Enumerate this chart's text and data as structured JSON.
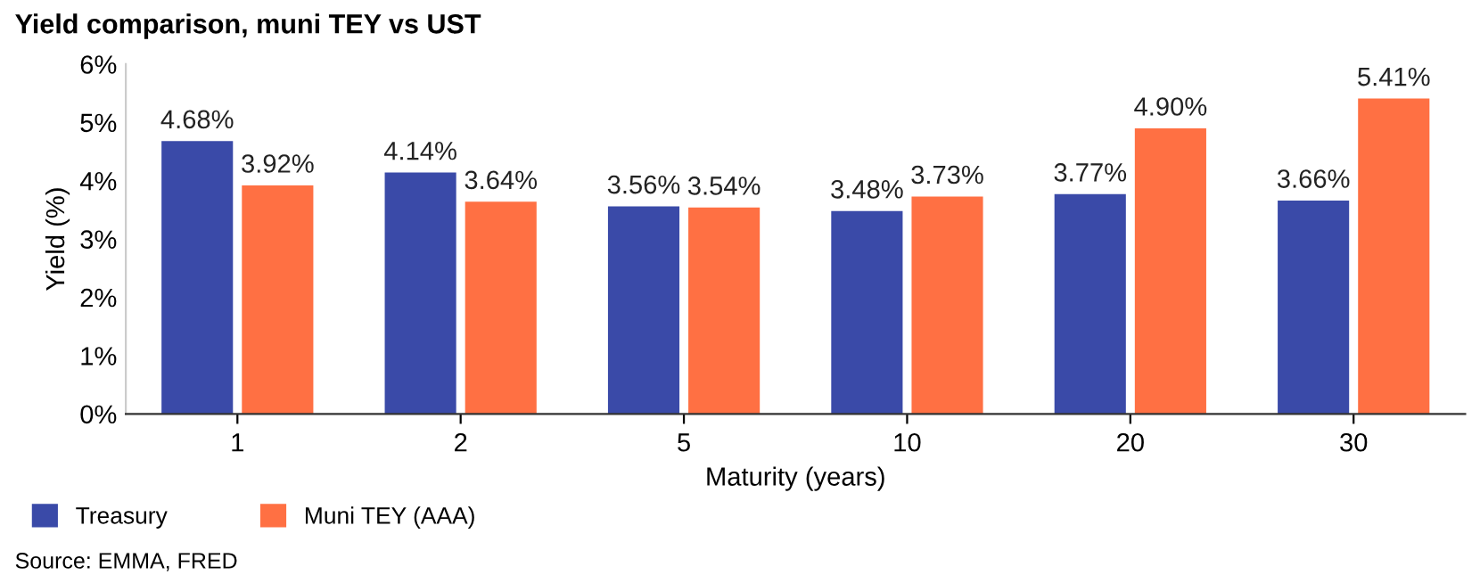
{
  "chart_data": {
    "type": "bar",
    "title": "Yield comparison, muni TEY vs UST",
    "xlabel": "Maturity (years)",
    "ylabel": "Yield (%)",
    "categories": [
      "1",
      "2",
      "5",
      "10",
      "20",
      "30"
    ],
    "series": [
      {
        "name": "Treasury",
        "color": "#3a4aa8",
        "values": [
          4.68,
          4.14,
          3.56,
          3.48,
          3.77,
          3.66
        ],
        "value_labels": [
          "4.68%",
          "4.14%",
          "3.56%",
          "3.48%",
          "3.77%",
          "3.66%"
        ]
      },
      {
        "name": "Muni TEY (AAA)",
        "color": "#ff7043",
        "values": [
          3.92,
          3.64,
          3.54,
          3.73,
          4.9,
          5.41
        ],
        "value_labels": [
          "3.92%",
          "3.64%",
          "3.54%",
          "3.73%",
          "4.90%",
          "5.41%"
        ]
      }
    ],
    "ylim": [
      0,
      6
    ],
    "yticks": [
      {
        "value": 0,
        "label": "0%"
      },
      {
        "value": 1,
        "label": "1%"
      },
      {
        "value": 2,
        "label": "2%"
      },
      {
        "value": 3,
        "label": "3%"
      },
      {
        "value": 4,
        "label": "4%"
      },
      {
        "value": 5,
        "label": "5%"
      },
      {
        "value": 6,
        "label": "6%"
      }
    ],
    "grid": false,
    "legend": "bottom left",
    "annotations": [
      "Source: EMMA, FRED"
    ]
  }
}
